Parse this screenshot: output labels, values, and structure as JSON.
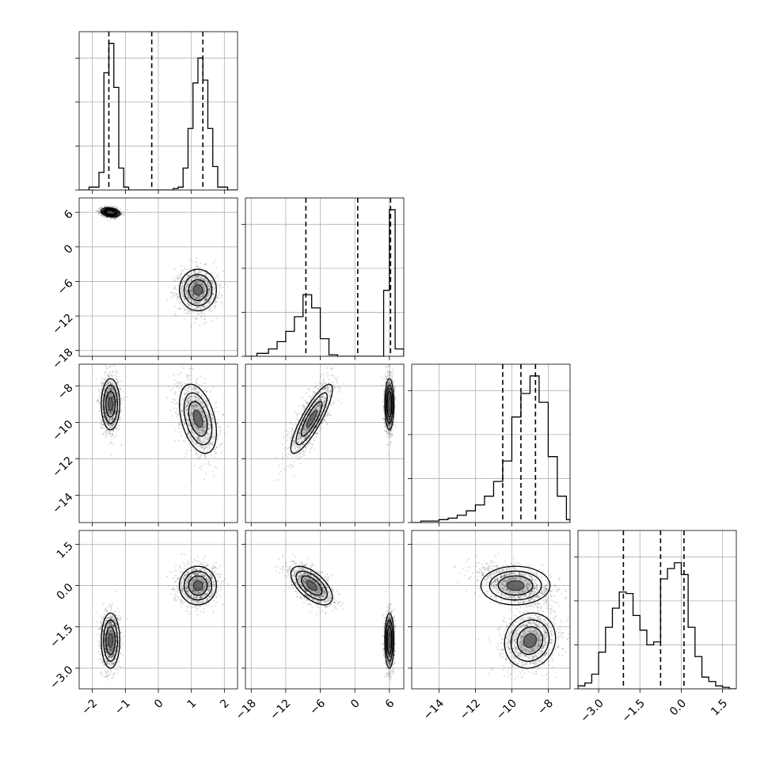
{
  "figure": {
    "type": "corner-plot"
  },
  "chart_data": {
    "type": "corner",
    "n_params": 4,
    "params": [
      {
        "index": 0,
        "range": [
          -2.4,
          2.4
        ],
        "ticks": [
          -2,
          -1,
          0,
          1,
          2
        ],
        "tick_labels": [
          "−2",
          "−1",
          "0",
          "1",
          "2"
        ],
        "quantiles": [
          -1.5,
          -0.2,
          1.35
        ],
        "hist": {
          "bins": [
            -2.4,
            -2.1,
            -1.8,
            -1.65,
            -1.5,
            -1.35,
            -1.2,
            -1.05,
            -0.9,
            -0.6,
            -0.3,
            0,
            0.3,
            0.45,
            0.6,
            0.75,
            0.9,
            1.05,
            1.2,
            1.35,
            1.5,
            1.65,
            1.8,
            2.1,
            2.4
          ],
          "counts": [
            0,
            0.02,
            0.12,
            0.8,
            1.0,
            0.7,
            0.15,
            0.02,
            0,
            0,
            0,
            0,
            0,
            0.01,
            0.02,
            0.15,
            0.42,
            0.73,
            0.9,
            0.75,
            0.42,
            0.16,
            0.02,
            0
          ]
        }
      },
      {
        "index": 1,
        "range": [
          -19,
          8.5
        ],
        "ticks": [
          -18,
          -12,
          -6,
          0,
          6
        ],
        "tick_labels": [
          "−18",
          "−12",
          "−6",
          "0",
          "6"
        ],
        "quantiles": [
          -8.5,
          0.5,
          6.2
        ],
        "hist": {
          "bins": [
            -19,
            -17,
            -15,
            -13.5,
            -12,
            -10.5,
            -9,
            -7.5,
            -6,
            -4.5,
            -3,
            5,
            6,
            7,
            8.5
          ],
          "counts": [
            0,
            0.02,
            0.05,
            0.1,
            0.17,
            0.27,
            0.42,
            0.33,
            0.12,
            0.01,
            0,
            0.45,
            1.0,
            0.05
          ]
        }
      },
      {
        "index": 2,
        "range": [
          -15.5,
          -6.8
        ],
        "ticks": [
          -14,
          -12,
          -10,
          -8
        ],
        "tick_labels": [
          "−14",
          "−12",
          "−10",
          "−8"
        ],
        "quantiles": [
          -10.5,
          -9.5,
          -8.7
        ],
        "hist": {
          "bins": [
            -15.5,
            -15,
            -14.5,
            -14,
            -13.5,
            -13,
            -12.5,
            -12,
            -11.5,
            -11,
            -10.5,
            -10,
            -9.5,
            -9,
            -8.5,
            -8,
            -7.5,
            -7,
            -6.8
          ],
          "counts": [
            0,
            0.01,
            0.01,
            0.02,
            0.03,
            0.05,
            0.08,
            0.12,
            0.18,
            0.28,
            0.42,
            0.72,
            0.88,
            1.0,
            0.82,
            0.45,
            0.18,
            0.02
          ]
        }
      },
      {
        "index": 3,
        "range": [
          -3.75,
          2.0
        ],
        "ticks": [
          -3.0,
          -1.5,
          0.0,
          1.5
        ],
        "tick_labels": [
          "−3.0",
          "−1.5",
          "0.0",
          "1.5"
        ],
        "quantiles": [
          -2.1,
          -0.75,
          0.1
        ],
        "hist": {
          "bins": [
            -3.75,
            -3.5,
            -3.25,
            -3.0,
            -2.75,
            -2.5,
            -2.25,
            -2.0,
            -1.75,
            -1.5,
            -1.25,
            -1.0,
            -0.75,
            -0.5,
            -0.25,
            0,
            0.25,
            0.5,
            0.75,
            1.0,
            1.25,
            1.5,
            1.75,
            2.0
          ],
          "counts": [
            0.02,
            0.04,
            0.1,
            0.25,
            0.42,
            0.55,
            0.66,
            0.65,
            0.5,
            0.4,
            0.3,
            0.32,
            0.75,
            0.82,
            0.86,
            0.78,
            0.42,
            0.22,
            0.08,
            0.05,
            0.02,
            0.01,
            0
          ]
        }
      }
    ],
    "hist_ylim": [
      0,
      1.08
    ],
    "hist_yticks": [
      0.0,
      0.3,
      0.6,
      0.9
    ],
    "grid": true,
    "clusters": [
      {
        "weight": 0.5,
        "mean": [
          -1.45,
          6.0,
          -9.0,
          -2.0
        ],
        "sd": [
          0.14,
          0.4,
          0.7,
          0.5
        ],
        "cov_pairs": [
          [
            0,
            1,
            -0.25
          ],
          [
            2,
            3,
            0.1
          ]
        ]
      },
      {
        "weight": 0.5,
        "mean": [
          1.2,
          -7.5,
          -9.8,
          0.0
        ],
        "sd": [
          0.28,
          1.8,
          0.95,
          0.35
        ],
        "cov_pairs": [
          [
            1,
            2,
            0.85
          ],
          [
            1,
            3,
            -0.6
          ],
          [
            0,
            2,
            -0.4
          ]
        ]
      }
    ]
  }
}
